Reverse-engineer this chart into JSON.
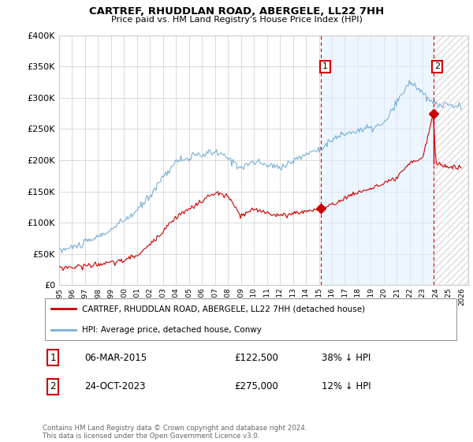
{
  "title": "CARTREF, RHUDDLAN ROAD, ABERGELE, LL22 7HH",
  "subtitle": "Price paid vs. HM Land Registry's House Price Index (HPI)",
  "ylim": [
    0,
    400000
  ],
  "xlim_start": 1995.0,
  "xlim_end": 2026.5,
  "background_color": "#ffffff",
  "grid_color": "#cccccc",
  "red_line_color": "#cc0000",
  "blue_line_color": "#7ab0d4",
  "blue_fill_color": "#ddeeff",
  "vline_color": "#cc0000",
  "marker1_year": 2015.18,
  "marker2_year": 2023.82,
  "marker1_label": "1",
  "marker2_label": "2",
  "marker1_price": 122500,
  "marker2_price": 275000,
  "legend_red": "CARTREF, RHUDDLAN ROAD, ABERGELE, LL22 7HH (detached house)",
  "legend_blue": "HPI: Average price, detached house, Conwy",
  "annotation1": "06-MAR-2015",
  "annotation1_price": "£122,500",
  "annotation1_hpi": "38% ↓ HPI",
  "annotation2": "24-OCT-2023",
  "annotation2_price": "£275,000",
  "annotation2_hpi": "12% ↓ HPI",
  "footer": "Contains HM Land Registry data © Crown copyright and database right 2024.\nThis data is licensed under the Open Government Licence v3.0."
}
